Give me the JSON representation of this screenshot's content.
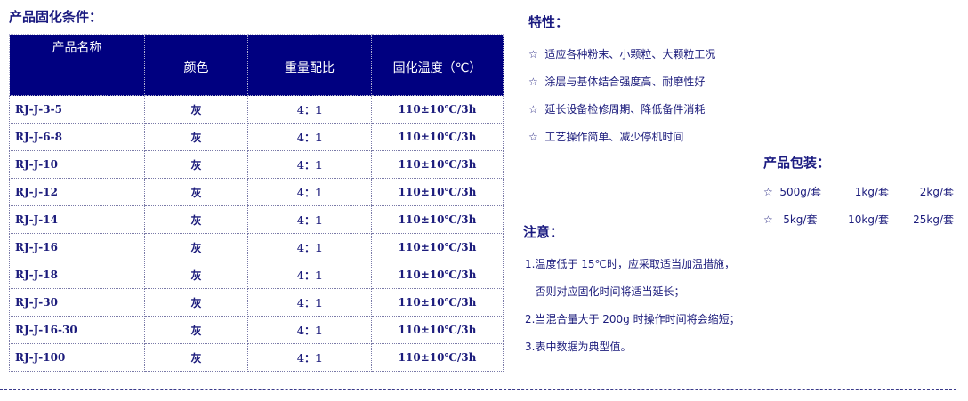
{
  "table_title": "产品固化条件：",
  "headers": [
    "产品名称",
    "颜色",
    "重量配比",
    "固化温度（℃）"
  ],
  "rows": [
    [
      "RJ-J-3-5",
      "灰",
      "4：1",
      "110±10℃/3h"
    ],
    [
      "RJ-J-6-8",
      "灰",
      "4：1",
      "110±10℃/3h"
    ],
    [
      "RJ-J-10",
      "灰",
      "4：1",
      "110±10℃/3h"
    ],
    [
      "RJ-J-12",
      "灰",
      "4：1",
      "110±10℃/3h"
    ],
    [
      "RJ-J-14",
      "灰",
      "4：1",
      "110±10℃/3h"
    ],
    [
      "RJ-J-16",
      "灰",
      "4：1",
      "110±10℃/3h"
    ],
    [
      "RJ-J-18",
      "灰",
      "4：1",
      "110±10℃/3h"
    ],
    [
      "RJ-J-30",
      "灰",
      "4：1",
      "110±10℃/3h"
    ],
    [
      "RJ-J-16-30",
      "灰",
      "4：1",
      "110±10℃/3h"
    ],
    [
      "RJ-J-100",
      "灰",
      "4：1",
      "110±10℃/3h"
    ]
  ],
  "features": {
    "title": "特性：",
    "items": [
      "☆  适应各种粉末、小颗粒、大颗粒工况",
      "☆  涂层与基体结合强度高、耐磨性好",
      "☆  延长设备检修周期、降低备件消耗",
      "☆  工艺操作简单、减少停机时间"
    ]
  },
  "packaging": {
    "title": "产品包装：",
    "rows": [
      [
        "☆  500g/套",
        "1kg/套",
        "2kg/套"
      ],
      [
        "☆   5kg/套",
        "10kg/套",
        "25kg/套"
      ]
    ]
  },
  "notes": {
    "title": "注意：",
    "items": [
      "1.温度低于 15℃时，应采取适当加温措施，",
      "   否则对应固化时间将适当延长；",
      "2.当混合量大于 200g 时操作时间将会缩短；",
      "3.表中数据为典型值。"
    ]
  },
  "colors": {
    "header_bg": "#000080",
    "text": "#1c1c7c"
  }
}
